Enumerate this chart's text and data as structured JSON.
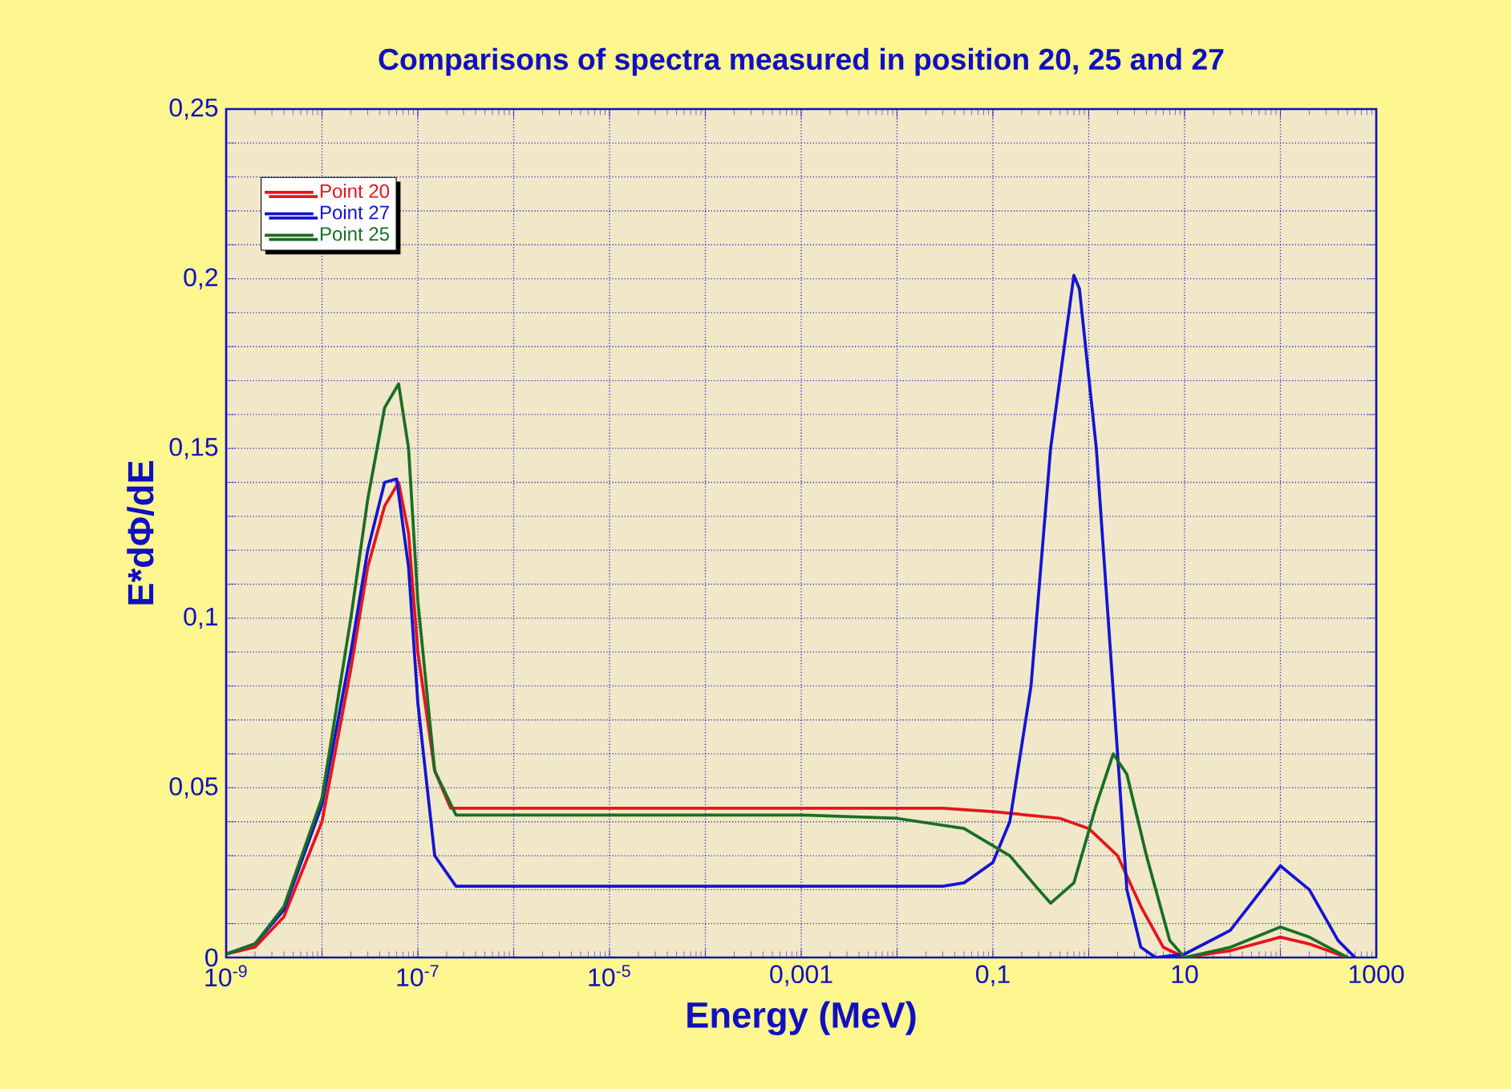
{
  "chart_data": {
    "type": "line",
    "title": "Comparisons of spectra measured in position 20, 25 and 27",
    "xlabel": "Energy (MeV)",
    "ylabel": "E*dΦ/dE",
    "log": "x",
    "xlim": [
      1e-09,
      1000
    ],
    "ylim": [
      0,
      0.25
    ],
    "xticks": [
      {
        "value": 1e-09,
        "label": "10$^{-9}$"
      },
      {
        "value": 1e-08,
        "label": null
      },
      {
        "value": 1e-07,
        "label": "10$^{-7}$"
      },
      {
        "value": 1e-06,
        "label": null
      },
      {
        "value": 1e-05,
        "label": "10$^{-5}$"
      },
      {
        "value": 0.0001,
        "label": null
      },
      {
        "value": 0.001,
        "label": "0,001"
      },
      {
        "value": 0.01,
        "label": null
      },
      {
        "value": 0.1,
        "label": "0,1"
      },
      {
        "value": 1,
        "label": null
      },
      {
        "value": 10,
        "label": "10"
      },
      {
        "value": 100,
        "label": null
      },
      {
        "value": 1000,
        "label": "1000"
      }
    ],
    "yticks": [
      {
        "value": 0,
        "label": "0"
      },
      {
        "value": 0.01,
        "label": null
      },
      {
        "value": 0.02,
        "label": null
      },
      {
        "value": 0.03,
        "label": null
      },
      {
        "value": 0.04,
        "label": null
      },
      {
        "value": 0.05,
        "label": "0,05"
      },
      {
        "value": 0.06,
        "label": null
      },
      {
        "value": 0.07,
        "label": null
      },
      {
        "value": 0.08,
        "label": null
      },
      {
        "value": 0.09,
        "label": null
      },
      {
        "value": 0.1,
        "label": "0,1"
      },
      {
        "value": 0.11,
        "label": null
      },
      {
        "value": 0.12,
        "label": null
      },
      {
        "value": 0.13,
        "label": null
      },
      {
        "value": 0.14,
        "label": null
      },
      {
        "value": 0.15,
        "label": "0,15"
      },
      {
        "value": 0.16,
        "label": null
      },
      {
        "value": 0.17,
        "label": null
      },
      {
        "value": 0.18,
        "label": null
      },
      {
        "value": 0.19,
        "label": null
      },
      {
        "value": 0.2,
        "label": "0,2"
      },
      {
        "value": 0.21,
        "label": null
      },
      {
        "value": 0.22,
        "label": null
      },
      {
        "value": 0.23,
        "label": null
      },
      {
        "value": 0.24,
        "label": null
      },
      {
        "value": 0.25,
        "label": "0,25"
      }
    ],
    "grid": true,
    "legend": "top left",
    "marker": "none",
    "line_style": "solid",
    "series": [
      {
        "name": "Point 20",
        "color": "#e8141c",
        "x": [
          1e-09,
          2e-09,
          4e-09,
          1e-08,
          2e-08,
          3e-08,
          4.5e-08,
          6.3e-08,
          8e-08,
          1e-07,
          1.5e-07,
          2.2e-07,
          1e-05,
          0.001,
          0.03,
          0.1,
          0.5,
          1,
          2,
          3.5,
          6,
          10,
          30,
          100,
          200,
          500
        ],
        "values": [
          0.001,
          0.003,
          0.012,
          0.04,
          0.085,
          0.115,
          0.133,
          0.14,
          0.125,
          0.09,
          0.055,
          0.044,
          0.044,
          0.044,
          0.044,
          0.043,
          0.041,
          0.038,
          0.03,
          0.015,
          0.003,
          0,
          0.002,
          0.006,
          0.004,
          0
        ]
      },
      {
        "name": "Point 27",
        "color": "#1414d2",
        "x": [
          1e-09,
          2e-09,
          4e-09,
          1e-08,
          2e-08,
          3e-08,
          4.5e-08,
          6e-08,
          8e-08,
          1e-07,
          1.5e-07,
          2.5e-07,
          1e-05,
          0.001,
          0.03,
          0.05,
          0.1,
          0.15,
          0.25,
          0.4,
          0.7,
          0.8,
          1.2,
          2,
          2.5,
          3.5,
          5,
          10,
          30,
          100,
          200,
          400,
          600
        ],
        "values": [
          0.001,
          0.004,
          0.014,
          0.045,
          0.09,
          0.12,
          0.14,
          0.141,
          0.115,
          0.075,
          0.03,
          0.021,
          0.021,
          0.021,
          0.021,
          0.022,
          0.028,
          0.04,
          0.08,
          0.15,
          0.201,
          0.197,
          0.15,
          0.06,
          0.02,
          0.003,
          0,
          0.001,
          0.008,
          0.027,
          0.02,
          0.005,
          0
        ]
      },
      {
        "name": "Point 25",
        "color": "#1a6e24",
        "x": [
          1e-09,
          2e-09,
          4e-09,
          1e-08,
          2e-08,
          3e-08,
          4.5e-08,
          6.3e-08,
          8e-08,
          1e-07,
          1.5e-07,
          2.5e-07,
          1e-05,
          0.001,
          0.01,
          0.05,
          0.15,
          0.3,
          0.4,
          0.7,
          1.2,
          1.8,
          2.5,
          4,
          7,
          10,
          30,
          100,
          200,
          500
        ],
        "values": [
          0.001,
          0.004,
          0.015,
          0.047,
          0.1,
          0.135,
          0.162,
          0.169,
          0.15,
          0.105,
          0.055,
          0.042,
          0.042,
          0.042,
          0.041,
          0.038,
          0.03,
          0.02,
          0.016,
          0.022,
          0.045,
          0.06,
          0.054,
          0.03,
          0.005,
          0,
          0.003,
          0.009,
          0.006,
          0
        ]
      }
    ]
  }
}
